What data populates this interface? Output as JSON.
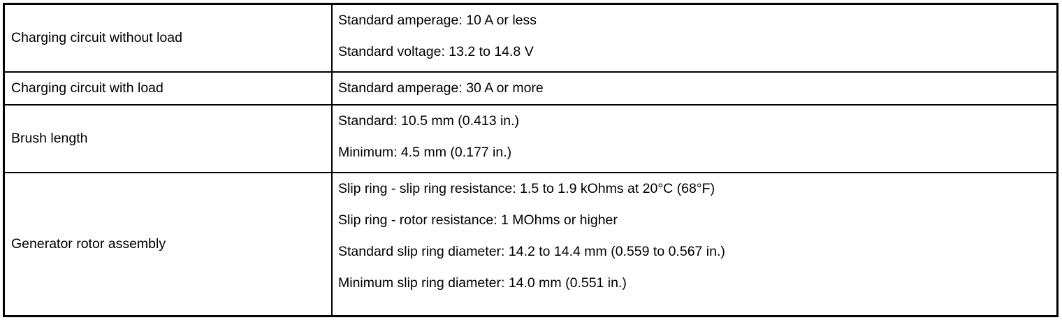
{
  "table": {
    "colors": {
      "border": "#000000",
      "background": "#ffffff",
      "text": "#000000"
    },
    "rows": [
      {
        "label": "Charging circuit without load",
        "values": [
          "Standard amperage: 10 A or less",
          "Standard voltage: 13.2 to 14.8 V"
        ]
      },
      {
        "label": "Charging circuit with load",
        "values": [
          "Standard amperage: 30 A or more"
        ]
      },
      {
        "label": "Brush length",
        "values": [
          "Standard: 10.5 mm (0.413 in.)",
          "Minimum: 4.5 mm (0.177 in.)"
        ]
      },
      {
        "label": "Generator rotor assembly",
        "values": [
          "Slip ring - slip ring resistance: 1.5 to 1.9 kOhms at 20°C (68°F)",
          "Slip ring - rotor resistance: 1 MOhms or higher",
          "Standard slip ring diameter: 14.2 to 14.4 mm (0.559 to 0.567 in.)",
          "Minimum slip ring diameter: 14.0 mm (0.551 in.)"
        ]
      }
    ]
  }
}
